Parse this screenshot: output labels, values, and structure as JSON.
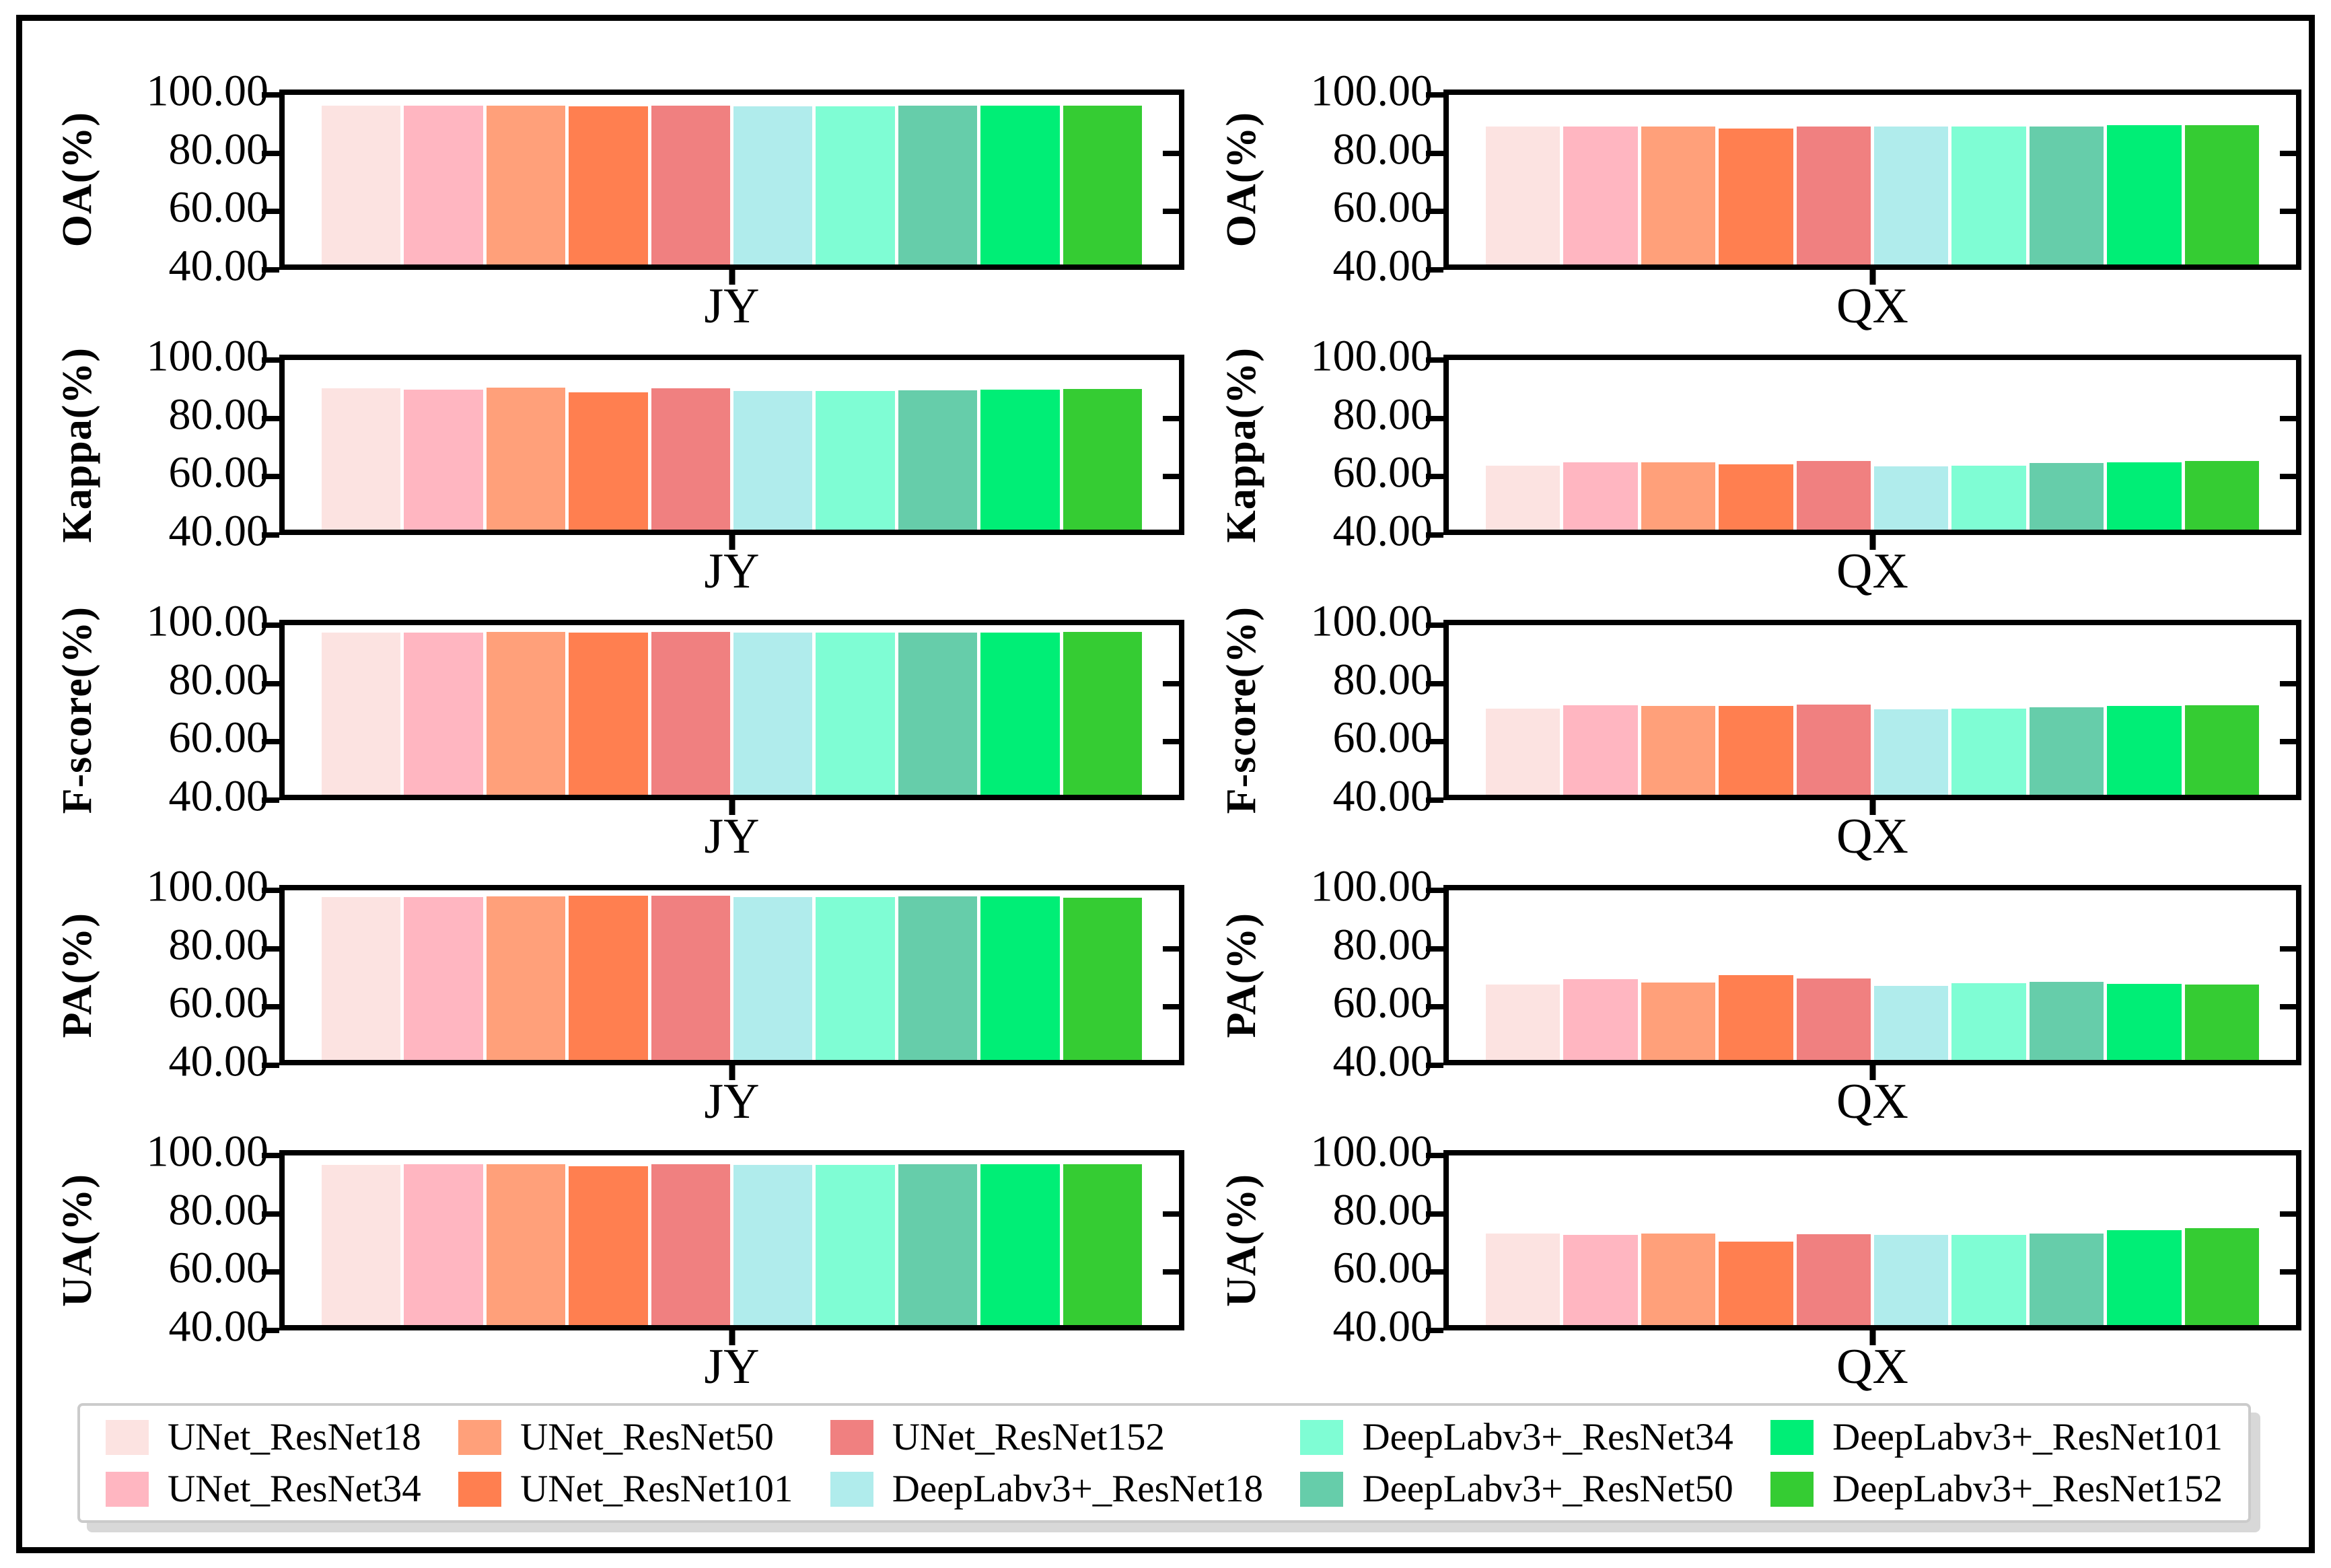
{
  "figure": {
    "kind": "grouped metric bar charts",
    "regions": [
      "JY",
      "QX"
    ],
    "metrics": [
      "OA(%)",
      "Kappa(%)",
      "F-score(%)",
      "PA(%)",
      "UA(%)"
    ]
  },
  "models": [
    "UNet_ResNet18",
    "UNet_ResNet34",
    "UNet_ResNet50",
    "UNet_ResNet101",
    "UNet_ResNet152",
    "DeepLabv3+_ResNet18",
    "DeepLabv3+_ResNet34",
    "DeepLabv3+_ResNet50",
    "DeepLabv3+_ResNet101",
    "DeepLabv3+_ResNet152"
  ],
  "palette": [
    "#FCE3E1",
    "#FFB6C1",
    "#FFA07A",
    "#FF7F50",
    "#F08080",
    "#B0ECEC",
    "#7FFDD4",
    "#66CDAA",
    "#00EE76",
    "#35CC33"
  ],
  "axis": {
    "ymin": 40,
    "ymax": 100,
    "yticks": [
      100,
      80,
      60,
      40
    ],
    "ytick_labels": [
      "100.00",
      "80.00",
      "60.00",
      "40.00"
    ],
    "grid": false
  },
  "legend": {
    "position": "bottom",
    "rows": 2,
    "columns": 5,
    "entries": [
      {
        "label": "UNet_ResNet18",
        "color": "#FCE3E1"
      },
      {
        "label": "UNet_ResNet34",
        "color": "#FFB6C1"
      },
      {
        "label": "UNet_ResNet50",
        "color": "#FFA07A"
      },
      {
        "label": "UNet_ResNet101",
        "color": "#FF7F50"
      },
      {
        "label": "UNet_ResNet152",
        "color": "#F08080"
      },
      {
        "label": "DeepLabv3+_ResNet18",
        "color": "#B0ECEC"
      },
      {
        "label": "DeepLabv3+_ResNet34",
        "color": "#7FFDD4"
      },
      {
        "label": "DeepLabv3+_ResNet50",
        "color": "#66CDAA"
      },
      {
        "label": "DeepLabv3+_ResNet101",
        "color": "#00EE76"
      },
      {
        "label": "DeepLabv3+_ResNet152",
        "color": "#35CC33"
      }
    ]
  },
  "chart_data": [
    {
      "type": "bar",
      "metric": "OA(%)",
      "region": "JY",
      "ylim": [
        40,
        100
      ],
      "categories": [
        "UNet_ResNet18",
        "UNet_ResNet34",
        "UNet_ResNet50",
        "UNet_ResNet101",
        "UNet_ResNet152",
        "DeepLabv3+_ResNet18",
        "DeepLabv3+_ResNet34",
        "DeepLabv3+_ResNet50",
        "DeepLabv3+_ResNet101",
        "DeepLabv3+_ResNet152"
      ],
      "values": [
        96.1,
        96.2,
        96.2,
        95.9,
        96.3,
        95.9,
        96.0,
        96.1,
        96.2,
        96.3
      ]
    },
    {
      "type": "bar",
      "metric": "OA(%)",
      "region": "QX",
      "ylim": [
        40,
        100
      ],
      "categories": [
        "UNet_ResNet18",
        "UNet_ResNet34",
        "UNet_ResNet50",
        "UNet_ResNet101",
        "UNet_ResNet152",
        "DeepLabv3+_ResNet18",
        "DeepLabv3+_ResNet34",
        "DeepLabv3+_ResNet50",
        "DeepLabv3+_ResNet101",
        "DeepLabv3+_ResNet152"
      ],
      "values": [
        88.8,
        88.9,
        88.9,
        88.0,
        88.9,
        88.7,
        88.7,
        88.8,
        89.2,
        89.3
      ]
    },
    {
      "type": "bar",
      "metric": "Kappa(%)",
      "region": "JY",
      "ylim": [
        40,
        100
      ],
      "categories": [
        "UNet_ResNet18",
        "UNet_ResNet34",
        "UNet_ResNet50",
        "UNet_ResNet101",
        "UNet_ResNet152",
        "DeepLabv3+_ResNet18",
        "DeepLabv3+_ResNet34",
        "DeepLabv3+_ResNet50",
        "DeepLabv3+_ResNet101",
        "DeepLabv3+_ResNet152"
      ],
      "values": [
        90.0,
        89.6,
        90.2,
        88.6,
        89.9,
        89.0,
        89.0,
        89.2,
        89.6,
        89.7
      ]
    },
    {
      "type": "bar",
      "metric": "Kappa(%)",
      "region": "QX",
      "ylim": [
        40,
        100
      ],
      "categories": [
        "UNet_ResNet18",
        "UNet_ResNet34",
        "UNet_ResNet50",
        "UNet_ResNet101",
        "UNet_ResNet152",
        "DeepLabv3+_ResNet18",
        "DeepLabv3+_ResNet34",
        "DeepLabv3+_ResNet50",
        "DeepLabv3+_ResNet101",
        "DeepLabv3+_ResNet152"
      ],
      "values": [
        62.6,
        63.9,
        63.7,
        63.1,
        64.2,
        62.3,
        62.7,
        63.5,
        63.9,
        64.2
      ]
    },
    {
      "type": "bar",
      "metric": "F-score(%)",
      "region": "JY",
      "ylim": [
        40,
        100
      ],
      "categories": [
        "UNet_ResNet18",
        "UNet_ResNet34",
        "UNet_ResNet50",
        "UNet_ResNet101",
        "UNet_ResNet152",
        "DeepLabv3+_ResNet18",
        "DeepLabv3+_ResNet34",
        "DeepLabv3+_ResNet50",
        "DeepLabv3+_ResNet101",
        "DeepLabv3+_ResNet152"
      ],
      "values": [
        97.4,
        97.5,
        97.6,
        97.3,
        97.6,
        97.4,
        97.4,
        97.5,
        97.5,
        97.6
      ]
    },
    {
      "type": "bar",
      "metric": "F-score(%)",
      "region": "QX",
      "ylim": [
        40,
        100
      ],
      "categories": [
        "UNet_ResNet18",
        "UNet_ResNet34",
        "UNet_ResNet50",
        "UNet_ResNet101",
        "UNet_ResNet152",
        "DeepLabv3+_ResNet18",
        "DeepLabv3+_ResNet34",
        "DeepLabv3+_ResNet50",
        "DeepLabv3+_ResNet101",
        "DeepLabv3+_ResNet152"
      ],
      "values": [
        70.4,
        71.6,
        71.4,
        71.4,
        71.8,
        70.2,
        70.4,
        71.0,
        71.5,
        71.7
      ]
    },
    {
      "type": "bar",
      "metric": "PA(%)",
      "region": "JY",
      "ylim": [
        40,
        100
      ],
      "categories": [
        "UNet_ResNet18",
        "UNet_ResNet34",
        "UNet_ResNet50",
        "UNet_ResNet101",
        "UNet_ResNet152",
        "DeepLabv3+_ResNet18",
        "DeepLabv3+_ResNet34",
        "DeepLabv3+_ResNet50",
        "DeepLabv3+_ResNet101",
        "DeepLabv3+_ResNet152"
      ],
      "values": [
        97.6,
        97.7,
        97.8,
        98.2,
        98.0,
        97.7,
        97.7,
        97.8,
        97.8,
        97.4
      ]
    },
    {
      "type": "bar",
      "metric": "PA(%)",
      "region": "QX",
      "ylim": [
        40,
        100
      ],
      "categories": [
        "UNet_ResNet18",
        "UNet_ResNet34",
        "UNet_ResNet50",
        "UNet_ResNet101",
        "UNet_ResNet152",
        "DeepLabv3+_ResNet18",
        "DeepLabv3+_ResNet34",
        "DeepLabv3+_ResNet50",
        "DeepLabv3+_ResNet101",
        "DeepLabv3+_ResNet152"
      ],
      "values": [
        66.7,
        68.6,
        67.5,
        70.0,
        68.9,
        66.1,
        67.2,
        67.6,
        66.9,
        66.7
      ]
    },
    {
      "type": "bar",
      "metric": "UA(%)",
      "region": "JY",
      "ylim": [
        40,
        100
      ],
      "categories": [
        "UNet_ResNet18",
        "UNet_ResNet34",
        "UNet_ResNet50",
        "UNet_ResNet101",
        "UNet_ResNet152",
        "DeepLabv3+_ResNet18",
        "DeepLabv3+_ResNet34",
        "DeepLabv3+_ResNet50",
        "DeepLabv3+_ResNet101",
        "DeepLabv3+_ResNet152"
      ],
      "values": [
        96.7,
        96.8,
        97.0,
        96.1,
        96.8,
        96.7,
        96.7,
        96.8,
        96.9,
        97.0
      ]
    },
    {
      "type": "bar",
      "metric": "UA(%)",
      "region": "QX",
      "ylim": [
        40,
        100
      ],
      "categories": [
        "UNet_ResNet18",
        "UNet_ResNet34",
        "UNet_ResNet50",
        "UNet_ResNet101",
        "UNet_ResNet152",
        "DeepLabv3+_ResNet18",
        "DeepLabv3+_ResNet34",
        "DeepLabv3+_ResNet50",
        "DeepLabv3+_ResNet101",
        "DeepLabv3+_ResNet152"
      ],
      "values": [
        72.3,
        71.9,
        72.5,
        69.6,
        72.1,
        71.9,
        71.8,
        72.5,
        73.5,
        74.4
      ]
    }
  ]
}
